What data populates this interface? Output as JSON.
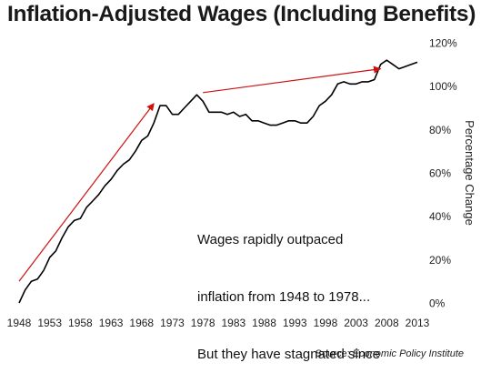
{
  "chart_data": {
    "type": "line",
    "title": "Inflation-Adjusted Wages (Including Benefits)",
    "ylabel": "Percentage Change",
    "xlabel": "",
    "xlim": [
      1948,
      2013
    ],
    "ylim": [
      0,
      120
    ],
    "y_axis_side": "right",
    "y_tick_labels": [
      "0%",
      "20%",
      "40%",
      "60%",
      "80%",
      "100%",
      "120%"
    ],
    "y_ticks": [
      0,
      20,
      40,
      60,
      80,
      100,
      120
    ],
    "x_tick_labels": [
      "1948",
      "1953",
      "1958",
      "1963",
      "1968",
      "1973",
      "1978",
      "1983",
      "1988",
      "1993",
      "1998",
      "2003",
      "2008",
      "2013"
    ],
    "x_ticks": [
      1948,
      1953,
      1958,
      1963,
      1968,
      1973,
      1978,
      1983,
      1988,
      1993,
      1998,
      2003,
      2008,
      2013
    ],
    "grid": false,
    "series": [
      {
        "color": "#000000",
        "x": [
          1948,
          1949,
          1950,
          1951,
          1952,
          1953,
          1954,
          1955,
          1956,
          1957,
          1958,
          1959,
          1960,
          1961,
          1962,
          1963,
          1964,
          1965,
          1966,
          1967,
          1968,
          1969,
          1970,
          1971,
          1972,
          1973,
          1974,
          1975,
          1976,
          1977,
          1978,
          1979,
          1980,
          1981,
          1982,
          1983,
          1984,
          1985,
          1986,
          1987,
          1988,
          1989,
          1990,
          1991,
          1992,
          1993,
          1994,
          1995,
          1996,
          1997,
          1998,
          1999,
          2000,
          2001,
          2002,
          2003,
          2004,
          2005,
          2006,
          2007,
          2008,
          2009,
          2010,
          2011,
          2012,
          2013
        ],
        "y": [
          0,
          6,
          10,
          11,
          15,
          21,
          24,
          30,
          35,
          38,
          39,
          44,
          47,
          50,
          54,
          57,
          61,
          64,
          66,
          70,
          75,
          77,
          83,
          91,
          91,
          87,
          87,
          90,
          93,
          96,
          93,
          88,
          88,
          88,
          87,
          88,
          86,
          87,
          84,
          84,
          83,
          82,
          82,
          83,
          84,
          84,
          83,
          83,
          86,
          91,
          93,
          96,
          101,
          102,
          101,
          101,
          102,
          102,
          103,
          110,
          112,
          110,
          108,
          109,
          110,
          111
        ]
      }
    ],
    "arrows": [
      {
        "from": [
          1948,
          10
        ],
        "to": [
          1970,
          92
        ],
        "color": "#cc1111"
      },
      {
        "from": [
          1978,
          97
        ],
        "to": [
          2007,
          108
        ],
        "color": "#cc1111"
      }
    ],
    "annotation": [
      "Wages rapidly outpaced",
      "inflation from 1948 to 1978...",
      "But they have stagnated since"
    ]
  },
  "source": {
    "label": "Source:",
    "publisher": "Economic Policy Institute"
  }
}
